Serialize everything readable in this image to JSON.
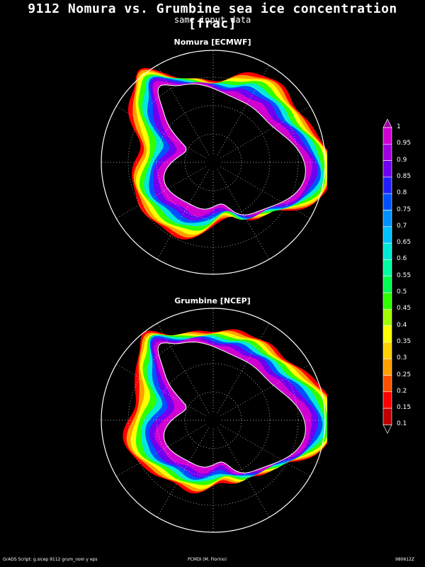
{
  "title": "9112 Nomura vs. Grumbine sea ice concentration [frac]",
  "subtitle": "same input data",
  "maps": [
    {
      "label": "Nomura [ECMWF]"
    },
    {
      "label": "Grumbine [NCEP]"
    }
  ],
  "colorbar": {
    "labels": [
      "1",
      "0.95",
      "0.9",
      "0.85",
      "0.8",
      "0.75",
      "0.7",
      "0.65",
      "0.6",
      "0.55",
      "0.5",
      "0.45",
      "0.4",
      "0.35",
      "0.3",
      "0.25",
      "0.2",
      "0.15",
      "0.1"
    ],
    "colors": [
      "#d000d0",
      "#a000e0",
      "#7000f0",
      "#2020ff",
      "#0050ff",
      "#0090ff",
      "#00c0ff",
      "#00e8d8",
      "#00ffa0",
      "#00ff50",
      "#30ff00",
      "#a0ff00",
      "#ffff00",
      "#ffd000",
      "#ffa000",
      "#ff5000",
      "#ff0000",
      "#c00000"
    ]
  },
  "footer": {
    "left": "GrADS Script: g.sicep 9112 grum_nom y eps",
    "center": "PCMDI (M. Fiorino)",
    "right": "980612Z"
  }
}
